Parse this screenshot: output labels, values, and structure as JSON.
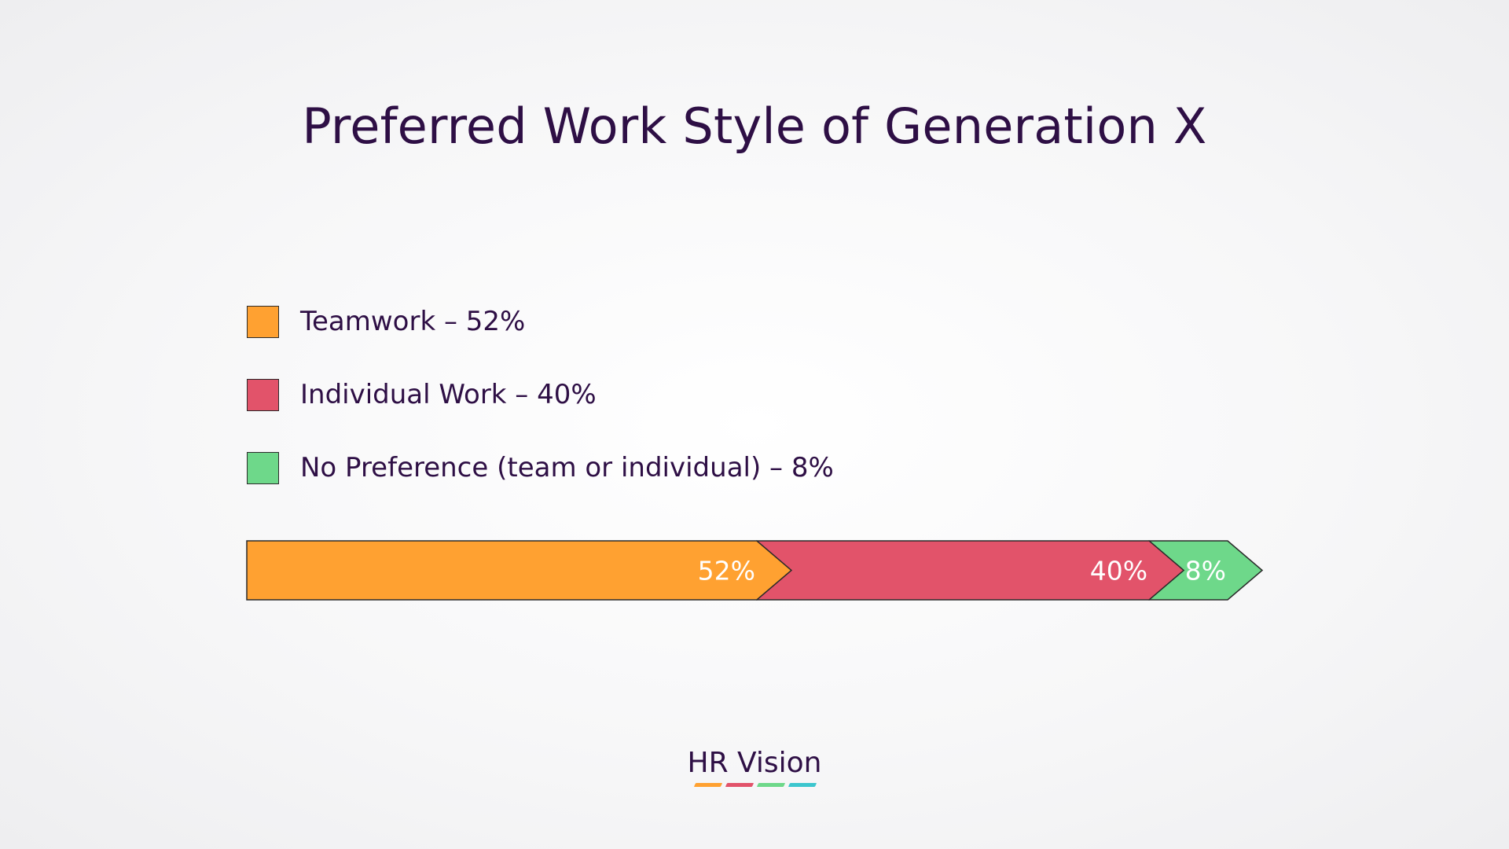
{
  "title": "Preferred Work Style of Generation X",
  "legend": [
    {
      "label": "Teamwork – 52%",
      "color": "#FFA131"
    },
    {
      "label": "Individual Work – 40%",
      "color": "#E2536A"
    },
    {
      "label": "No Preference (team or individual) – 8%",
      "color": "#6ED88A"
    }
  ],
  "chart_data": {
    "type": "bar",
    "orientation": "horizontal-stacked",
    "categories": [
      "Teamwork",
      "Individual Work",
      "No Preference (team or individual)"
    ],
    "values": [
      52,
      40,
      8
    ],
    "unit": "%",
    "data_labels": [
      "52%",
      "40%",
      "8%"
    ],
    "colors": [
      "#FFA131",
      "#E2536A",
      "#6ED88A"
    ],
    "title": "Preferred Work Style of Generation X",
    "legend_position": "top-left",
    "grid": false
  },
  "logo": {
    "text": "HR Vision",
    "dash_colors": [
      "#FFA131",
      "#E2536A",
      "#6ED88A",
      "#3CC6CE"
    ]
  }
}
